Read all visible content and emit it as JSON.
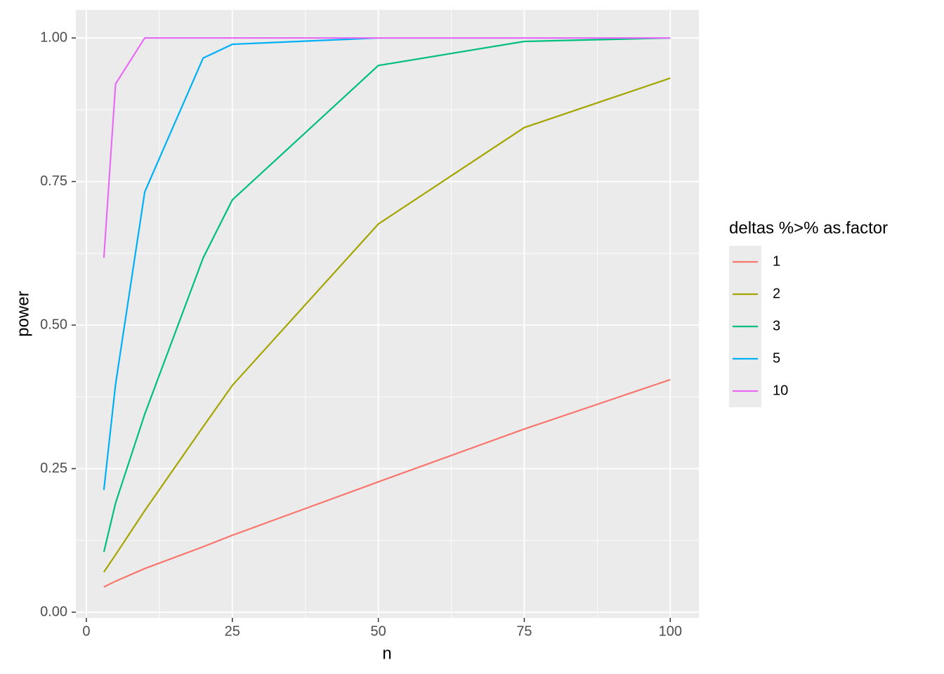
{
  "chart_data": {
    "type": "line",
    "x_label": "n",
    "y_label": "power",
    "x": [
      3,
      5,
      10,
      20,
      25,
      50,
      75,
      100
    ],
    "series": [
      {
        "name": "1",
        "color": "#F8766D",
        "values": [
          0.044,
          0.054,
          0.076,
          0.114,
          0.134,
          0.227,
          0.319,
          0.405
        ]
      },
      {
        "name": "2",
        "color": "#A3A500",
        "values": [
          0.07,
          0.1,
          0.177,
          0.323,
          0.395,
          0.676,
          0.844,
          0.93
        ]
      },
      {
        "name": "3",
        "color": "#00BF7D",
        "values": [
          0.105,
          0.19,
          0.345,
          0.617,
          0.718,
          0.952,
          0.994,
          1.0
        ]
      },
      {
        "name": "5",
        "color": "#00B0F6",
        "values": [
          0.213,
          0.397,
          0.732,
          0.965,
          0.989,
          1.0,
          1.0,
          1.0
        ]
      },
      {
        "name": "10",
        "color": "#E76BF3",
        "values": [
          0.617,
          0.92,
          1.0,
          1.0,
          1.0,
          1.0,
          1.0,
          1.0
        ]
      }
    ],
    "legend_title": "deltas %>% as.factor",
    "legend_position": "right",
    "xlim": [
      -1.8,
      104.9
    ],
    "ylim": [
      -0.0098,
      1.049
    ],
    "xticks": [
      0,
      25,
      50,
      75,
      100
    ],
    "yticks": [
      {
        "value": 0,
        "label": "0.00"
      },
      {
        "value": 0.25,
        "label": "0.25"
      },
      {
        "value": 0.5,
        "label": "0.50"
      },
      {
        "value": 0.75,
        "label": "0.75"
      },
      {
        "value": 1,
        "label": "1.00"
      }
    ],
    "grid": true
  }
}
